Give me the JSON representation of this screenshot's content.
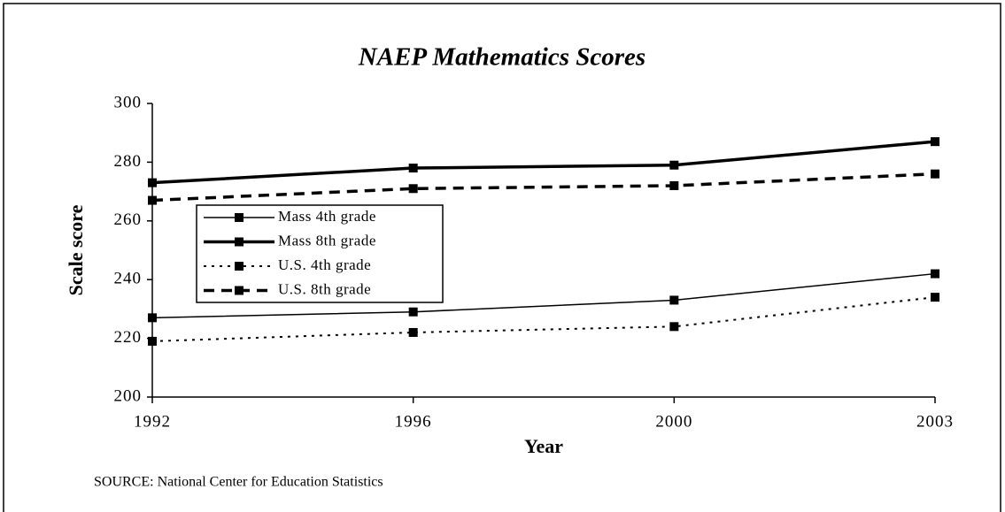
{
  "chart_data": {
    "type": "line",
    "title": "NAEP Mathematics Scores",
    "x_label": "Year",
    "y_label": "Scale score",
    "source": "SOURCE:  National Center for Education Statistics",
    "categories": [
      "1992",
      "1996",
      "2000",
      "2003"
    ],
    "ylim": [
      200,
      300
    ],
    "yticks": [
      200,
      220,
      240,
      260,
      280,
      300
    ],
    "grid": false,
    "series": [
      {
        "name": "Mass 4th grade",
        "color": "#000000",
        "line_width": 1.5,
        "dash": "solid",
        "values": [
          227,
          229,
          233,
          242
        ]
      },
      {
        "name": "Mass 8th grade",
        "color": "#000000",
        "line_width": 3.5,
        "dash": "solid",
        "values": [
          273,
          278,
          279,
          287
        ]
      },
      {
        "name": "U.S. 4th grade",
        "color": "#000000",
        "line_width": 2,
        "dash": "dotted",
        "values": [
          219,
          222,
          224,
          234
        ]
      },
      {
        "name": "U.S. 8th grade",
        "color": "#000000",
        "line_width": 3.5,
        "dash": "dashed",
        "values": [
          267,
          271,
          272,
          276
        ]
      }
    ]
  }
}
